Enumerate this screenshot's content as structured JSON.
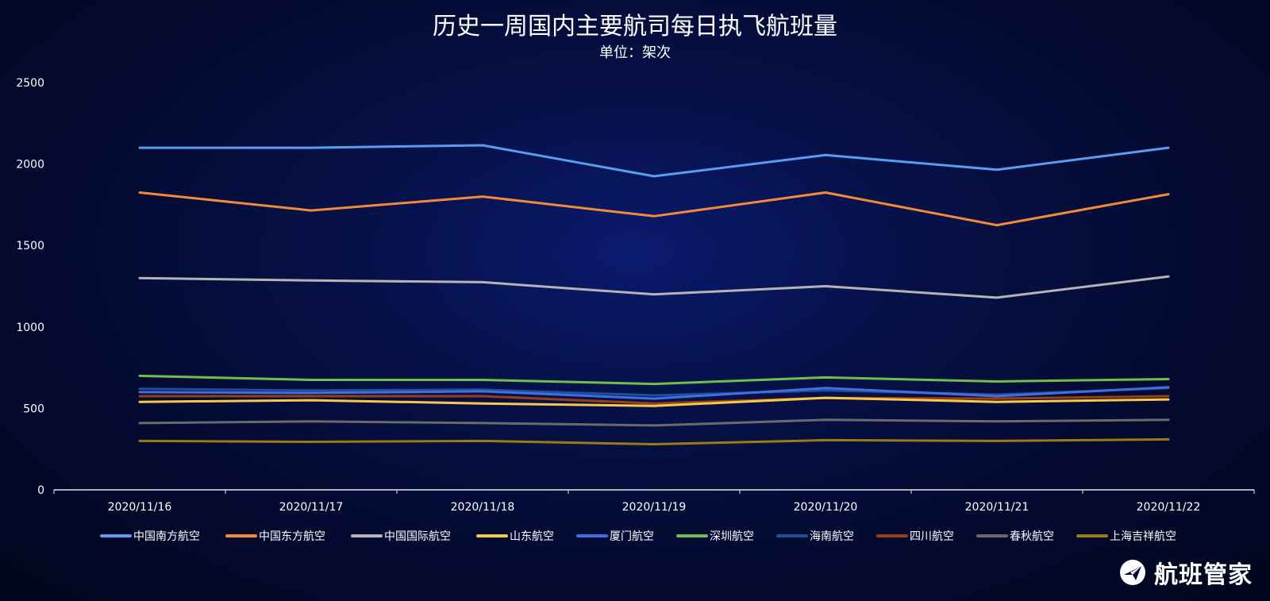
{
  "chart_data": {
    "type": "line",
    "title": "历史一周国内主要航司每日执飞航班量",
    "subtitle": "单位：架次",
    "x": [
      "2020/11/16",
      "2020/11/17",
      "2020/11/18",
      "2020/11/19",
      "2020/11/20",
      "2020/11/21",
      "2020/11/22"
    ],
    "ylim": [
      0,
      2500
    ],
    "yticks": [
      0,
      500,
      1000,
      1500,
      2000,
      2500
    ],
    "grid": false,
    "legend_position": "bottom",
    "series": [
      {
        "name": "中国南方航空",
        "color": "#5b9cf3",
        "values": [
          2100,
          2100,
          2115,
          1925,
          2055,
          1965,
          2100
        ]
      },
      {
        "name": "中国东方航空",
        "color": "#f28a3c",
        "values": [
          1825,
          1715,
          1800,
          1680,
          1825,
          1625,
          1815
        ]
      },
      {
        "name": "中国国际航空",
        "color": "#b4b4b4",
        "values": [
          1300,
          1285,
          1275,
          1200,
          1250,
          1180,
          1310
        ]
      },
      {
        "name": "山东航空",
        "color": "#f7c948",
        "values": [
          540,
          550,
          530,
          515,
          565,
          540,
          555
        ]
      },
      {
        "name": "厦门航空",
        "color": "#3f6fe0",
        "values": [
          600,
          595,
          605,
          560,
          625,
          575,
          630
        ]
      },
      {
        "name": "深圳航空",
        "color": "#6fbf4a",
        "values": [
          700,
          675,
          675,
          650,
          690,
          665,
          680
        ]
      },
      {
        "name": "海南航空",
        "color": "#1f4e9a",
        "values": [
          620,
          610,
          615,
          580,
          610,
          585,
          625
        ]
      },
      {
        "name": "四川航空",
        "color": "#9a3f12",
        "values": [
          575,
          575,
          575,
          530,
          565,
          560,
          575
        ]
      },
      {
        "name": "春秋航空",
        "color": "#6a6a6a",
        "values": [
          410,
          420,
          410,
          395,
          430,
          420,
          430
        ]
      },
      {
        "name": "上海吉祥航空",
        "color": "#9a7a12",
        "values": [
          300,
          295,
          300,
          280,
          305,
          300,
          310
        ]
      }
    ]
  },
  "logo": {
    "text": "航班管家"
  }
}
